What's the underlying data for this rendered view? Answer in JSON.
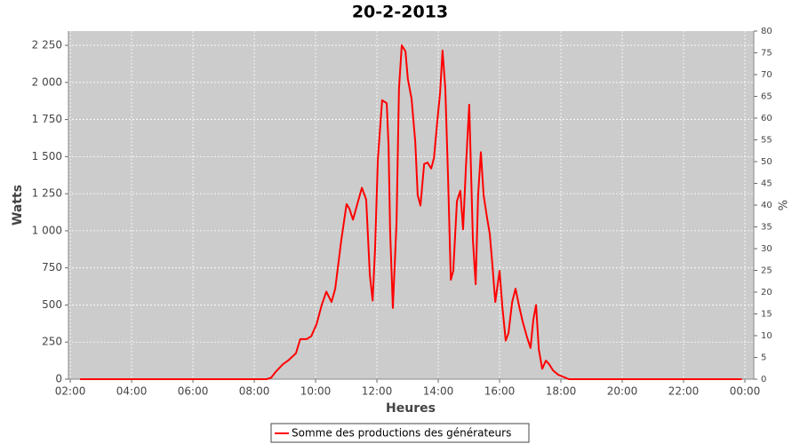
{
  "chart_data": {
    "type": "line",
    "title": "20-2-2013",
    "x_label": "Heures",
    "y_label": "Watts",
    "y2_label": "%",
    "x": [
      2.32,
      4,
      6,
      8,
      8.4,
      8.55,
      8.7,
      8.93,
      9.13,
      9.36,
      9.5,
      9.71,
      9.86,
      10.03,
      10.2,
      10.35,
      10.52,
      10.64,
      10.84,
      11.01,
      11.1,
      11.22,
      11.36,
      11.51,
      11.65,
      11.77,
      11.86,
      11.94,
      12.03,
      12.17,
      12.32,
      12.38,
      12.43,
      12.52,
      12.64,
      12.72,
      12.81,
      12.93,
      13.01,
      13.13,
      13.25,
      13.33,
      13.42,
      13.54,
      13.65,
      13.77,
      13.86,
      13.97,
      14.06,
      14.14,
      14.23,
      14.32,
      14.41,
      14.49,
      14.61,
      14.72,
      14.81,
      14.9,
      15.01,
      15.13,
      15.22,
      15.3,
      15.39,
      15.48,
      15.59,
      15.68,
      15.77,
      15.86,
      16.0,
      16.09,
      16.2,
      16.29,
      16.41,
      16.52,
      16.64,
      16.75,
      16.9,
      17.01,
      17.1,
      17.19,
      17.28,
      17.39,
      17.51,
      17.62,
      17.74,
      17.91,
      18.12,
      18.26,
      20,
      22,
      23.9
    ],
    "series": [
      {
        "name": "Somme des productions des  générateurs",
        "color": "#ff0000",
        "values": [
          0,
          0,
          0,
          0,
          0,
          10,
          50,
          100,
          130,
          175,
          270,
          270,
          290,
          370,
          500,
          590,
          520,
          610,
          940,
          1180,
          1150,
          1075,
          1180,
          1290,
          1210,
          700,
          530,
          880,
          1480,
          1880,
          1860,
          1570,
          1000,
          480,
          1060,
          1960,
          2250,
          2210,
          2020,
          1890,
          1600,
          1240,
          1170,
          1450,
          1460,
          1420,
          1490,
          1740,
          1930,
          2215,
          1960,
          1360,
          670,
          730,
          1200,
          1270,
          1010,
          1420,
          1850,
          940,
          640,
          1240,
          1530,
          1240,
          1090,
          980,
          760,
          520,
          730,
          490,
          260,
          310,
          520,
          610,
          490,
          390,
          280,
          210,
          400,
          500,
          200,
          70,
          125,
          100,
          60,
          30,
          12,
          0,
          0,
          0,
          0
        ]
      }
    ],
    "xlim": [
      1.94,
      24.29
    ],
    "ylim": [
      0,
      2346
    ],
    "y2lim": [
      0,
      80
    ],
    "xticks": [
      {
        "value": 2,
        "label": "02:00"
      },
      {
        "value": 4,
        "label": "04:00"
      },
      {
        "value": 6,
        "label": "06:00"
      },
      {
        "value": 8,
        "label": "08:00"
      },
      {
        "value": 10,
        "label": "10:00"
      },
      {
        "value": 12,
        "label": "12:00"
      },
      {
        "value": 14,
        "label": "14:00"
      },
      {
        "value": 16,
        "label": "16:00"
      },
      {
        "value": 18,
        "label": "18:00"
      },
      {
        "value": 20,
        "label": "20:00"
      },
      {
        "value": 22,
        "label": "22:00"
      },
      {
        "value": 24,
        "label": "00:00"
      }
    ],
    "yticks": [
      0,
      250,
      500,
      750,
      {
        "value": 1000,
        "label": "1 000"
      },
      {
        "value": 1250,
        "label": "1 250"
      },
      {
        "value": 1500,
        "label": "1 500"
      },
      {
        "value": 1750,
        "label": "1 750"
      },
      {
        "value": 2000,
        "label": "2 000"
      },
      {
        "value": 2250,
        "label": "2 250"
      }
    ],
    "y2ticks": [
      0,
      5,
      10,
      15,
      20,
      25,
      30,
      35,
      40,
      45,
      50,
      55,
      60,
      65,
      70,
      75,
      80
    ],
    "grid": true
  }
}
